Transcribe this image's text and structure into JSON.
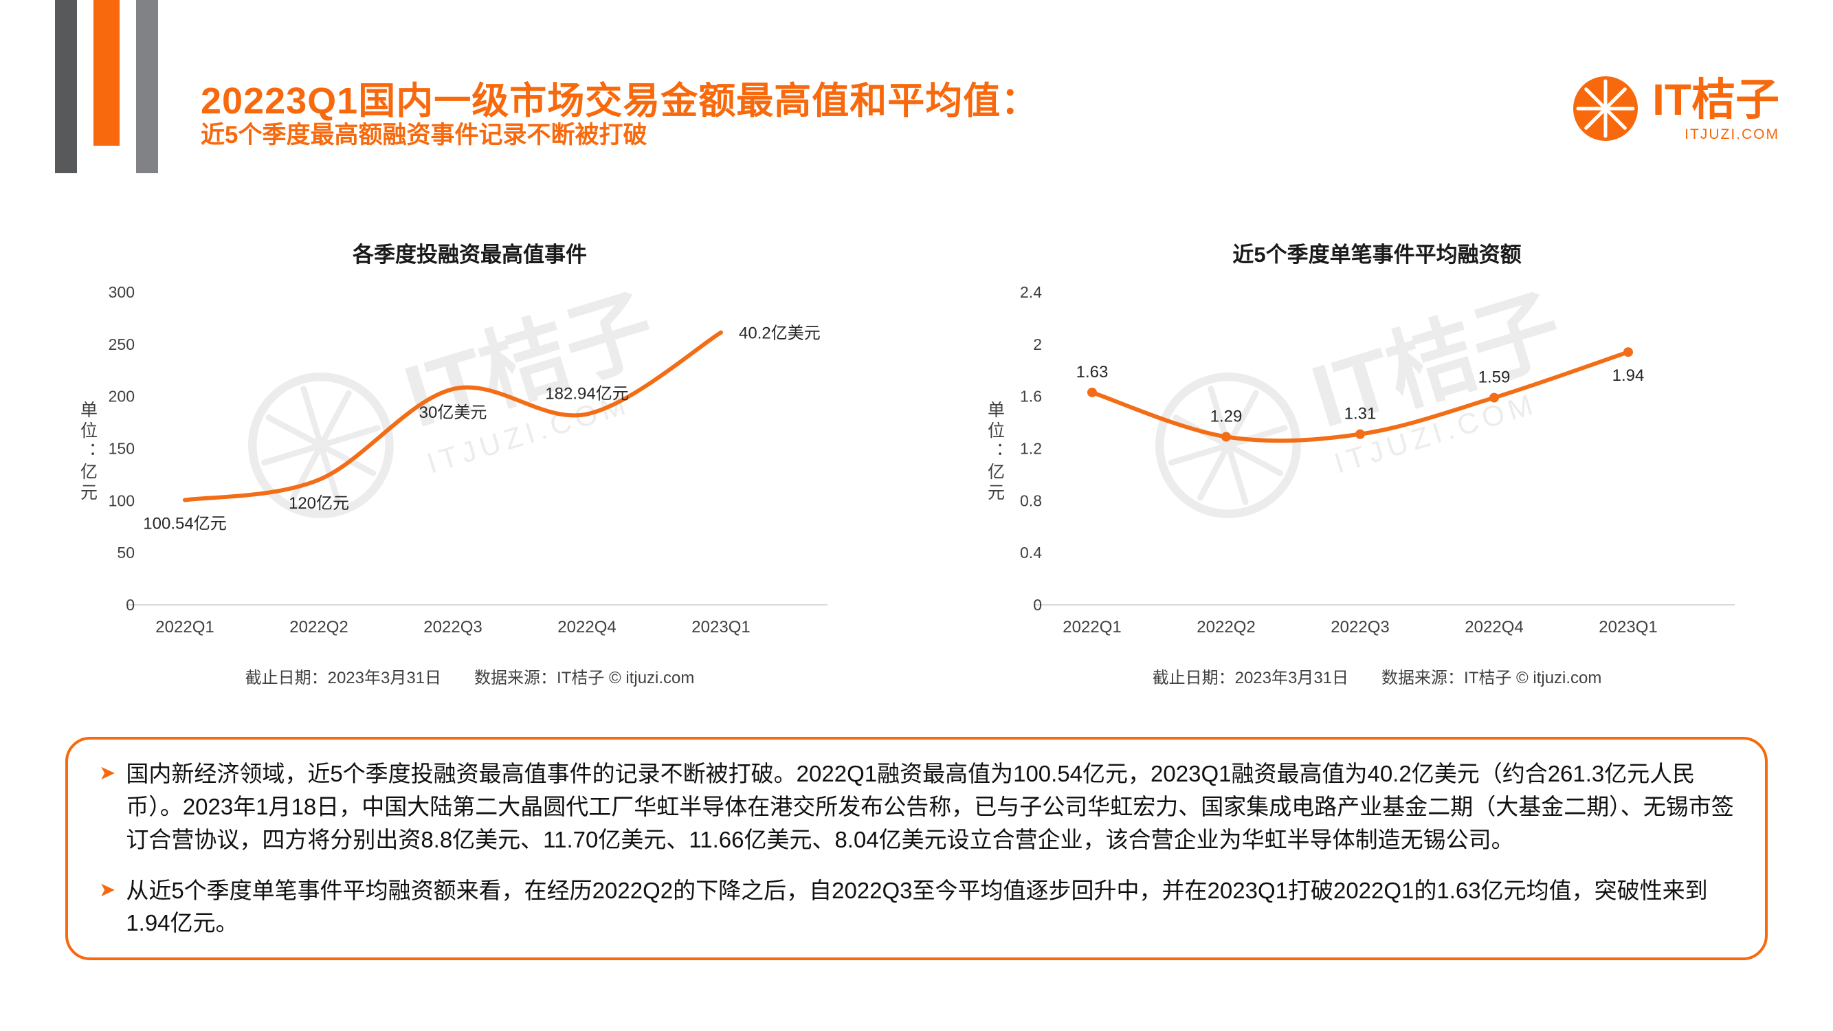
{
  "colors": {
    "accent": "#F7690C",
    "line": "#F26D15",
    "bar_gray_dark": "#58595B",
    "bar_gray": "#808285",
    "axis_text": "#404040",
    "watermark": "#ECECEC"
  },
  "header": {
    "title": "20223Q1国内一级市场交易金额最高值和平均值：",
    "subtitle": "近5个季度最高额融资事件记录不断被打破",
    "brand": {
      "name": "IT桔子",
      "domain": "ITJUZI.COM"
    }
  },
  "watermark": {
    "text": "IT桔子",
    "subtext": "ITJUZI.COM"
  },
  "charts_footer": {
    "cutoff": "截止日期：2023年3月31日",
    "source": "数据来源：IT桔子 © itjuzi.com"
  },
  "chart_data": [
    {
      "type": "line",
      "title": "各季度投融资最高值事件",
      "categories": [
        "2022Q1",
        "2022Q2",
        "2022Q3",
        "2022Q4",
        "2023Q1"
      ],
      "series": [
        {
          "name": "各季度投融资最高值（亿元）",
          "values": [
            100.54,
            120,
            207,
            182.94,
            261.3
          ]
        }
      ],
      "point_labels": [
        "100.54亿元",
        "120亿元",
        "30亿美元",
        "182.94亿元",
        "40.2亿美元"
      ],
      "label_positions": [
        "below",
        "below",
        "below",
        "above",
        "right"
      ],
      "ylabel": "单位：亿元",
      "ylim": [
        0,
        300
      ],
      "yticks": [
        0,
        50,
        100,
        150,
        200,
        250,
        300
      ],
      "grid": false,
      "legend": "none",
      "markers": false,
      "line_color": "#F26D15"
    },
    {
      "type": "line",
      "title": "近5个季度单笔事件平均融资额",
      "categories": [
        "2022Q1",
        "2022Q2",
        "2022Q3",
        "2022Q4",
        "2023Q1"
      ],
      "series": [
        {
          "name": "单笔事件平均融资额（亿元）",
          "values": [
            1.63,
            1.29,
            1.31,
            1.59,
            1.94
          ]
        }
      ],
      "point_labels": [
        "1.63",
        "1.29",
        "1.31",
        "1.59",
        "1.94"
      ],
      "label_positions": [
        "above",
        "above",
        "above",
        "above",
        "below"
      ],
      "ylabel": "单位：亿元",
      "ylim": [
        0,
        2.4
      ],
      "yticks": [
        0,
        0.4,
        0.8,
        1.2,
        1.6,
        2,
        2.4
      ],
      "grid": false,
      "legend": "none",
      "markers": true,
      "line_color": "#F26D15"
    }
  ],
  "notes": {
    "bullet": "➤",
    "items": [
      {
        "text": "国内新经济领域，近5个季度投融资最高值事件的记录不断被打破。2022Q1融资最高值为100.54亿元，2023Q1融资最高值为40.2亿美元（约合261.3亿元人民币）。2023年1月18日，中国大陆第二大晶圆代工厂华虹半导体在港交所发布公告称，已与子公司华虹宏力、国家集成电路产业基金二期（大基金二期）、无锡市签订合营协议，四方将分别出资8.8亿美元、11.70亿美元、11.66亿美元、8.04亿美元设立合营企业，该合营企业为华虹半导体制造无锡公司。"
      },
      {
        "text": "从近5个季度单笔事件平均融资额来看，在经历2022Q2的下降之后，自2022Q3至今平均值逐步回升中，并在2023Q1打破2022Q1的1.63亿元均值，突破性来到1.94亿元。"
      }
    ]
  }
}
